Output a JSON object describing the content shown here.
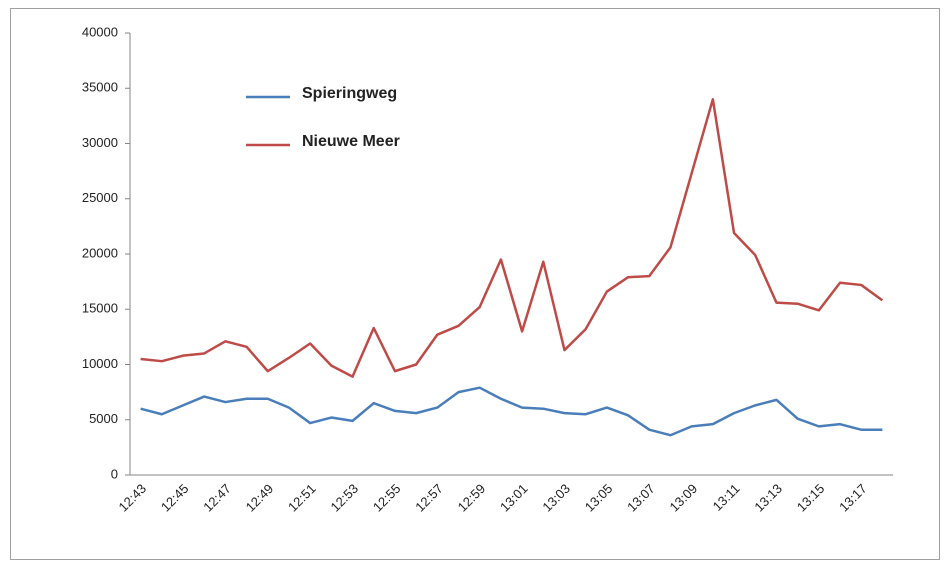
{
  "chart_data": {
    "type": "line",
    "categories": [
      "12:43",
      null,
      "12:45",
      null,
      "12:47",
      null,
      "12:49",
      null,
      "12:51",
      null,
      "12:53",
      null,
      "12:55",
      null,
      "12:57",
      null,
      "12:59",
      null,
      "13:01",
      null,
      "13:03",
      null,
      "13:05",
      null,
      "13:07",
      null,
      "13:09",
      null,
      "13:11",
      null,
      "13:13",
      null,
      "13:15",
      null,
      "13:17",
      null
    ],
    "series": [
      {
        "name": "Spieringweg",
        "color": "#4a7ebb",
        "values": [
          6000,
          5500,
          6300,
          7100,
          6600,
          6900,
          6900,
          6100,
          4700,
          5200,
          4900,
          6500,
          5800,
          5600,
          6100,
          7500,
          7900,
          6900,
          6100,
          6000,
          5600,
          5500,
          6100,
          5400,
          4100,
          3600,
          4400,
          4600,
          5600,
          6300,
          6800,
          5100,
          4400,
          4600,
          4100,
          4100
        ]
      },
      {
        "name": "Nieuwe Meer",
        "color": "#be4b48",
        "values": [
          10500,
          10300,
          10800,
          11000,
          12100,
          11600,
          9400,
          10600,
          11900,
          9900,
          8900,
          13300,
          9400,
          10000,
          12700,
          13500,
          15200,
          19500,
          13000,
          19300,
          11300,
          13200,
          16600,
          17900,
          18000,
          20600,
          27300,
          34000,
          21900,
          19900,
          15600,
          15500,
          14900,
          17400,
          17200,
          15800
        ]
      }
    ],
    "ylim": [
      0,
      40000
    ],
    "yticks": [
      0,
      5000,
      10000,
      15000,
      20000,
      25000,
      30000,
      35000,
      40000
    ],
    "grid": false
  }
}
